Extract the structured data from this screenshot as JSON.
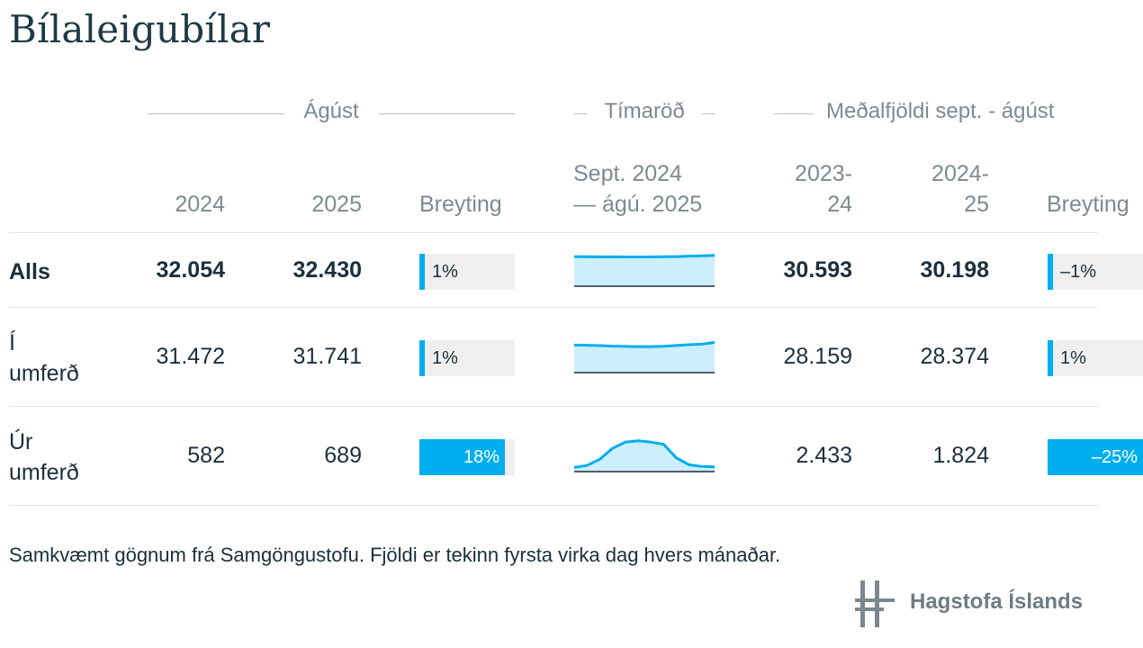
{
  "title": "Bílaleigubílar",
  "groups": [
    {
      "key": "month",
      "label": "Ágúst"
    },
    {
      "key": "series",
      "label": "Tímaröð"
    },
    {
      "key": "avg",
      "label": "Meðalfjöldi sept. - ágúst"
    }
  ],
  "columns": {
    "c2024": "2024",
    "c2025": "2025",
    "change": "Breyting",
    "series_l1": "Sept. 2024",
    "series_l2": "— ágú. 2025",
    "a1_l1": "2023-",
    "a1_l2": "24",
    "a2_l1": "2024-",
    "a2_l2": "25",
    "change2": "Breyting"
  },
  "chart_data": {
    "type": "table",
    "rows": [
      {
        "label_lines": [
          "Alls"
        ],
        "bold": true,
        "v2024": "32.054",
        "v2025": "32.430",
        "change": 1,
        "change_label": "1%",
        "series": [
          31200,
          31000,
          30900,
          30850,
          30800,
          30750,
          30800,
          31000,
          31200,
          31600,
          32000,
          32430
        ],
        "series_max": 36000,
        "avg1": "30.593",
        "avg2": "30.198",
        "change2": -1,
        "change2_label": "–1%"
      },
      {
        "label_lines": [
          "Í",
          "umferð"
        ],
        "bold": false,
        "v2024": "31.472",
        "v2025": "31.741",
        "change": 1,
        "change_label": "1%",
        "series": [
          29000,
          28800,
          28400,
          27900,
          27600,
          27400,
          27400,
          27800,
          28500,
          29400,
          29900,
          31741
        ],
        "series_max": 36000,
        "avg1": "28.159",
        "avg2": "28.374",
        "change2": 1,
        "change2_label": "1%"
      },
      {
        "label_lines": [
          "Úr",
          "umferð"
        ],
        "bold": false,
        "v2024": "582",
        "v2025": "689",
        "change": 18,
        "change_label": "18%",
        "series": [
          600,
          900,
          1800,
          3400,
          4300,
          4500,
          4300,
          4000,
          2000,
          1000,
          750,
          689
        ],
        "series_max": 5000,
        "avg1": "2.433",
        "avg2": "1.824",
        "change2": -25,
        "change2_label": "–25%"
      }
    ]
  },
  "footnote": "Samkvæmt gögnum frá Samgöngustofu. Fjöldi er tekinn fyrsta virka dag hvers mánaðar.",
  "logo": {
    "text": "Hagstofa Íslands",
    "icon": "hagstofa-logo-icon"
  },
  "colors": {
    "accent": "#00aeef",
    "spark_fill": "#cdeefb",
    "bar_bg": "#efefef"
  }
}
